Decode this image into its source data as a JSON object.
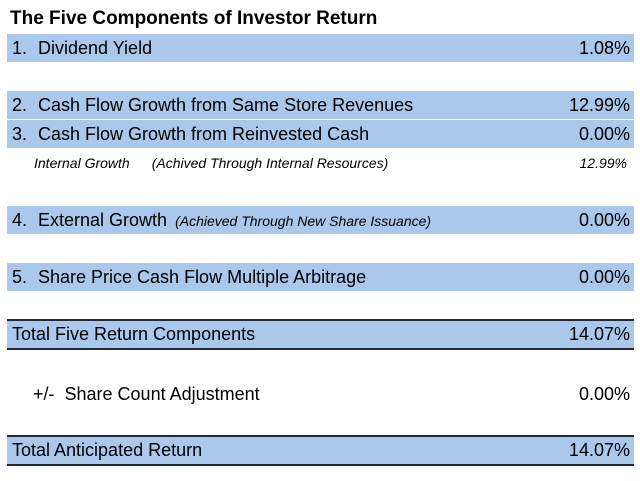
{
  "title": "The Five Components of Investor Return",
  "rows": {
    "dividend_yield": {
      "number": "1.",
      "label": "Dividend Yield",
      "value": "1.08%"
    },
    "same_store": {
      "number": "2.",
      "label": "Cash Flow Growth from Same Store Revenues",
      "value": "12.99%"
    },
    "reinvested": {
      "number": "3.",
      "label": "Cash Flow Growth from Reinvested Cash",
      "value": "0.00%"
    },
    "internal": {
      "label": "Internal Growth",
      "note": "(Achived Through Internal Resources)",
      "value": "12.99%"
    },
    "external": {
      "number": "4.",
      "label": "External Growth",
      "note": "(Achieved Through New Share Issuance)",
      "value": "0.00%"
    },
    "arbitrage": {
      "number": "5.",
      "label": "Share Price Cash Flow Multiple Arbitrage",
      "value": "0.00%"
    },
    "total_components": {
      "label": "Total Five Return Components",
      "value": "14.07%"
    },
    "share_count": {
      "prefix": "+/-",
      "label": "Share Count Adjustment",
      "value": "0.00%"
    },
    "total_return": {
      "label": "Total Anticipated Return",
      "value": "14.07%"
    }
  },
  "colors": {
    "row_fill": "#a9c8ec",
    "border": "#1f2a3c"
  }
}
